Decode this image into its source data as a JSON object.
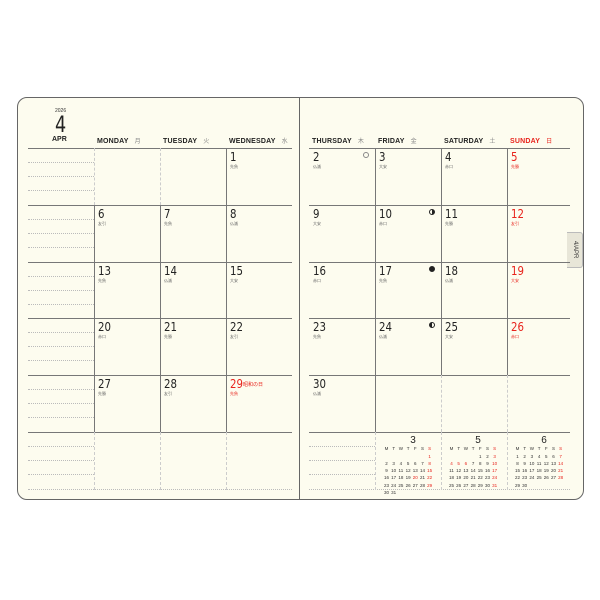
{
  "year": "2026",
  "month_num": "4",
  "month_abbr": "APR",
  "side_tab": "4/APR",
  "weekdays": [
    {
      "label": "MONDAY",
      "jp": "月",
      "red": false
    },
    {
      "label": "TUESDAY",
      "jp": "火",
      "red": false
    },
    {
      "label": "WEDNESDAY",
      "jp": "水",
      "red": false
    },
    {
      "label": "THURSDAY",
      "jp": "木",
      "red": false
    },
    {
      "label": "FRIDAY",
      "jp": "金",
      "red": false
    },
    {
      "label": "SATURDAY",
      "jp": "土",
      "red": false
    },
    {
      "label": "SUNDAY",
      "jp": "日",
      "red": true
    }
  ],
  "first_weekday_index": 2,
  "days": [
    {
      "day": "1",
      "rokuyo": "先負"
    },
    {
      "day": "2",
      "rokuyo": "仏滅",
      "moon": "full"
    },
    {
      "day": "3",
      "rokuyo": "大安"
    },
    {
      "day": "4",
      "rokuyo": "赤口"
    },
    {
      "day": "5",
      "rokuyo": "先勝",
      "red": true
    },
    {
      "day": "6",
      "rokuyo": "友引"
    },
    {
      "day": "7",
      "rokuyo": "先負"
    },
    {
      "day": "8",
      "rokuyo": "仏滅"
    },
    {
      "day": "9",
      "rokuyo": "大安"
    },
    {
      "day": "10",
      "rokuyo": "赤口",
      "moon": "last-quarter"
    },
    {
      "day": "11",
      "rokuyo": "先勝"
    },
    {
      "day": "12",
      "rokuyo": "友引",
      "red": true
    },
    {
      "day": "13",
      "rokuyo": "先負"
    },
    {
      "day": "14",
      "rokuyo": "仏滅"
    },
    {
      "day": "15",
      "rokuyo": "大安"
    },
    {
      "day": "16",
      "rokuyo": "赤口"
    },
    {
      "day": "17",
      "rokuyo": "先負",
      "moon": "new"
    },
    {
      "day": "18",
      "rokuyo": "仏滅"
    },
    {
      "day": "19",
      "rokuyo": "大安",
      "red": true
    },
    {
      "day": "20",
      "rokuyo": "赤口"
    },
    {
      "day": "21",
      "rokuyo": "先勝"
    },
    {
      "day": "22",
      "rokuyo": "友引"
    },
    {
      "day": "23",
      "rokuyo": "先負"
    },
    {
      "day": "24",
      "rokuyo": "仏滅",
      "moon": "first-quarter"
    },
    {
      "day": "25",
      "rokuyo": "大安"
    },
    {
      "day": "26",
      "rokuyo": "赤口",
      "red": true
    },
    {
      "day": "27",
      "rokuyo": "先勝"
    },
    {
      "day": "28",
      "rokuyo": "友引"
    },
    {
      "day": "29",
      "rokuyo": "先負",
      "red": true,
      "holiday": "昭和の日"
    },
    {
      "day": "30",
      "rokuyo": "仏滅"
    }
  ],
  "mini_header": [
    "M",
    "T",
    "W",
    "T",
    "F",
    "S",
    "S"
  ],
  "mini_calendars": [
    {
      "month": "3",
      "first_weekday_index": 6,
      "days": 31,
      "red": [
        1,
        8,
        15,
        20,
        22,
        29
      ]
    },
    {
      "month": "5",
      "first_weekday_index": 4,
      "days": 31,
      "red": [
        3,
        4,
        5,
        6,
        10,
        17,
        24,
        31
      ]
    },
    {
      "month": "6",
      "first_weekday_index": 0,
      "days": 30,
      "red": [
        7,
        14,
        21,
        28
      ]
    }
  ],
  "colors": {
    "red": "#e8231c",
    "paper": "#fdfcef",
    "line": "#777777"
  }
}
